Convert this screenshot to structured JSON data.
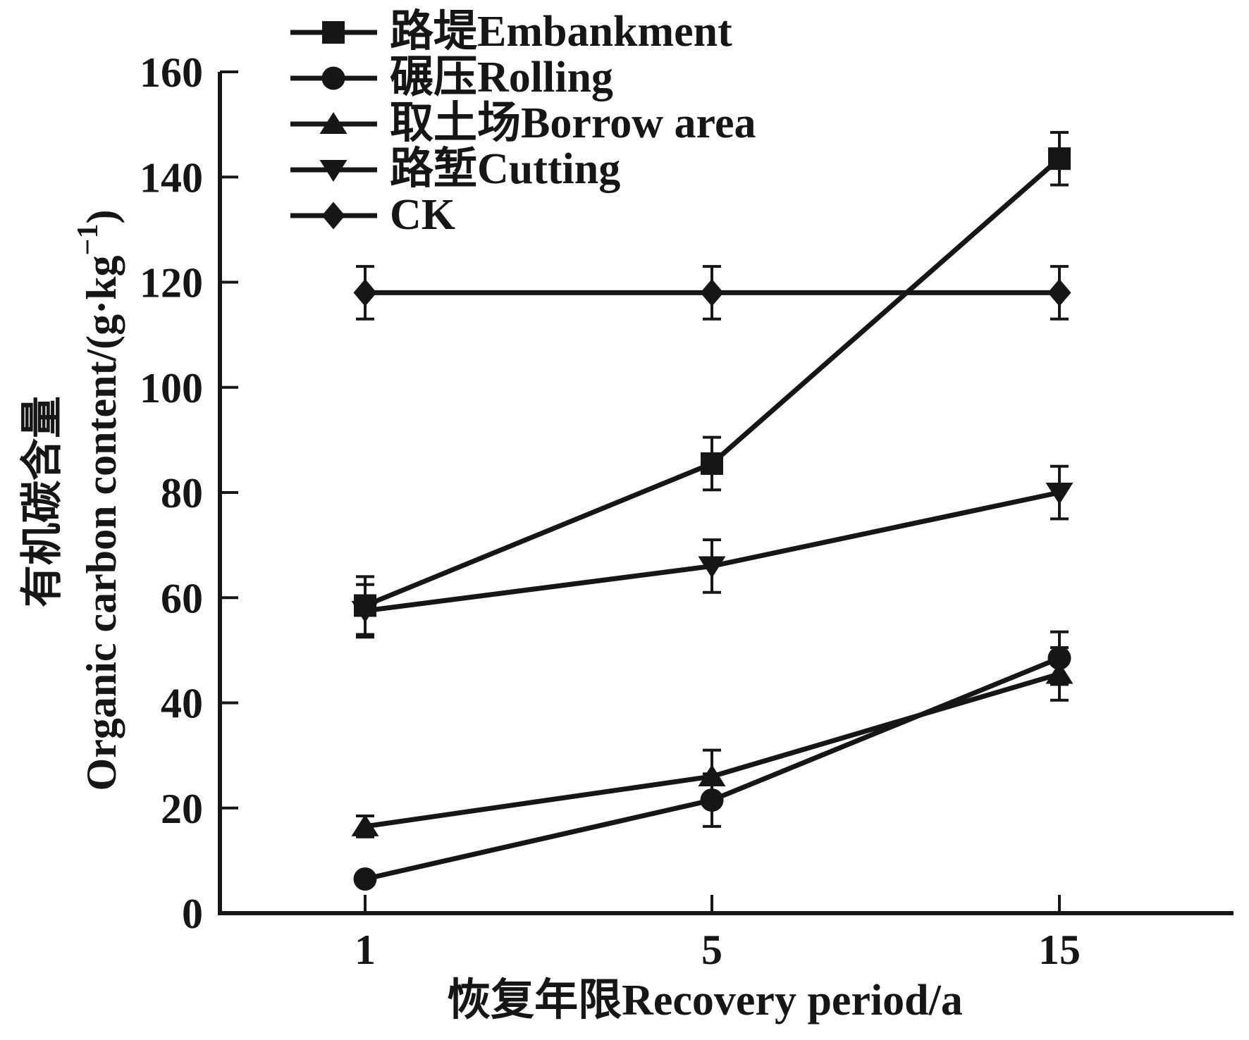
{
  "figure": {
    "background": "#ffffff",
    "ink_color": "#161616"
  },
  "chart_data": {
    "type": "line",
    "x": [
      1,
      5,
      15
    ],
    "xticklabels": [
      "1",
      "5",
      "15"
    ],
    "xlabel": "恢复年限Recovery period/a",
    "ylabel_zh": "有机碳含量",
    "ylabel_en_prefix": "Organic carbon content/(g·kg",
    "ylabel_en_sup": "−1",
    "ylabel_en_suffix": ")",
    "ylim": [
      0,
      160
    ],
    "ytick_step": 20,
    "ytick_labels": [
      "0",
      "20",
      "40",
      "60",
      "80",
      "100",
      "120",
      "140",
      "160"
    ],
    "grid": false,
    "legend_position": "top-left-inside",
    "series": [
      {
        "key": "embankment",
        "name": "路堤Embankment",
        "marker": "square",
        "values": [
          58.5,
          85.5,
          143.5
        ],
        "errors": [
          5.5,
          5,
          5
        ]
      },
      {
        "key": "rolling",
        "name": "碾压Rolling",
        "marker": "circle",
        "values": [
          6.5,
          21.5,
          48.5
        ],
        "errors": [
          1,
          5,
          5
        ]
      },
      {
        "key": "borrow-area",
        "name": "取土场Borrow area",
        "marker": "triangle-up",
        "values": [
          16.5,
          26,
          45.5
        ],
        "errors": [
          2,
          5,
          5
        ]
      },
      {
        "key": "cutting",
        "name": "路堑Cutting",
        "marker": "triangle-down",
        "values": [
          57.5,
          66,
          80
        ],
        "errors": [
          5,
          5,
          5
        ]
      },
      {
        "key": "ck",
        "name": "CK",
        "marker": "diamond",
        "values": [
          118,
          118,
          118
        ],
        "errors": [
          5,
          5,
          5
        ]
      }
    ]
  }
}
